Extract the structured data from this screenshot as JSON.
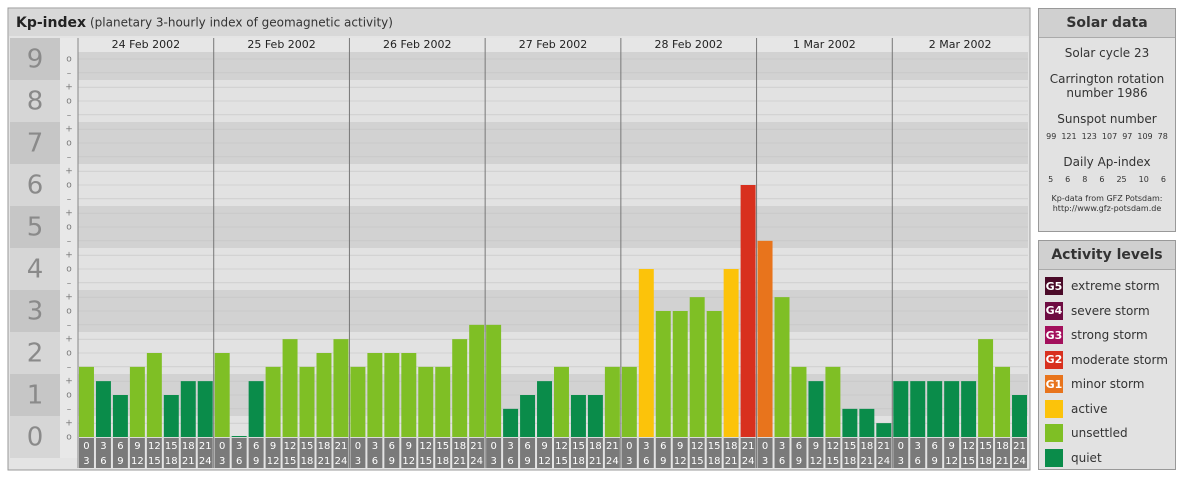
{
  "chart_data": {
    "type": "bar",
    "title": "Kp-index",
    "subtitle": "(planetary 3-hourly index of geomagnetic activity)",
    "ylim": [
      -0.5,
      9.5
    ],
    "yticks": [
      0,
      1,
      2,
      3,
      4,
      5,
      6,
      7,
      8,
      9
    ],
    "minor_ticks": [
      {
        "value": 9,
        "label": "o"
      },
      {
        "value": 8.67,
        "label": "–"
      },
      {
        "value": 8.33,
        "label": "+"
      },
      {
        "value": 8,
        "label": "o"
      },
      {
        "value": 7.67,
        "label": "–"
      },
      {
        "value": 7.33,
        "label": "+"
      },
      {
        "value": 7,
        "label": "o"
      },
      {
        "value": 6.67,
        "label": "–"
      },
      {
        "value": 6.33,
        "label": "+"
      },
      {
        "value": 6,
        "label": "o"
      },
      {
        "value": 5.67,
        "label": "–"
      },
      {
        "value": 5.33,
        "label": "+"
      },
      {
        "value": 5,
        "label": "o"
      },
      {
        "value": 4.67,
        "label": "–"
      },
      {
        "value": 4.33,
        "label": "+"
      },
      {
        "value": 4,
        "label": "o"
      },
      {
        "value": 3.67,
        "label": "–"
      },
      {
        "value": 3.33,
        "label": "+"
      },
      {
        "value": 3,
        "label": "o"
      },
      {
        "value": 2.67,
        "label": "–"
      },
      {
        "value": 2.33,
        "label": "+"
      },
      {
        "value": 2,
        "label": "o"
      },
      {
        "value": 1.67,
        "label": "–"
      },
      {
        "value": 1.33,
        "label": "+"
      },
      {
        "value": 1,
        "label": "o"
      },
      {
        "value": 0.67,
        "label": "–"
      },
      {
        "value": 0.33,
        "label": "+"
      },
      {
        "value": 0,
        "label": "o"
      }
    ],
    "hours": [
      "0",
      "3",
      "6",
      "9",
      "12",
      "15",
      "18",
      "21",
      "24"
    ],
    "days": [
      {
        "name": "24 Feb 2002",
        "values": [
          1.67,
          1.33,
          1,
          1.67,
          2,
          1,
          1.33,
          1.33
        ],
        "colors": [
          "#7fbf25",
          "#0a8c4a",
          "#0a8c4a",
          "#7fbf25",
          "#7fbf25",
          "#0a8c4a",
          "#0a8c4a",
          "#0a8c4a"
        ]
      },
      {
        "name": "25 Feb 2002",
        "values": [
          2,
          0,
          1.33,
          1.67,
          2.33,
          1.67,
          2,
          2.33
        ],
        "colors": [
          "#7fbf25",
          "#0a8c4a",
          "#0a8c4a",
          "#7fbf25",
          "#7fbf25",
          "#7fbf25",
          "#7fbf25",
          "#7fbf25"
        ]
      },
      {
        "name": "26 Feb 2002",
        "values": [
          1.67,
          2,
          2,
          2,
          1.67,
          1.67,
          2.33,
          2.67
        ],
        "colors": [
          "#7fbf25",
          "#7fbf25",
          "#7fbf25",
          "#7fbf25",
          "#7fbf25",
          "#7fbf25",
          "#7fbf25",
          "#7fbf25"
        ]
      },
      {
        "name": "27 Feb 2002",
        "values": [
          2.67,
          0.67,
          1,
          1.33,
          1.67,
          1,
          1,
          1.67
        ],
        "colors": [
          "#7fbf25",
          "#0a8c4a",
          "#0a8c4a",
          "#0a8c4a",
          "#7fbf25",
          "#0a8c4a",
          "#0a8c4a",
          "#7fbf25"
        ]
      },
      {
        "name": "28 Feb 2002",
        "values": [
          1.67,
          4,
          3,
          3,
          3.33,
          3,
          4,
          6
        ],
        "colors": [
          "#7fbf25",
          "#fcc30a",
          "#7fbf25",
          "#7fbf25",
          "#7fbf25",
          "#7fbf25",
          "#fcc30a",
          "#d8301e"
        ]
      },
      {
        "name": "1 Mar 2002",
        "values": [
          4.67,
          3.33,
          1.67,
          1.33,
          1.67,
          0.67,
          0.67,
          0.33
        ],
        "colors": [
          "#e8741c",
          "#7fbf25",
          "#7fbf25",
          "#0a8c4a",
          "#7fbf25",
          "#0a8c4a",
          "#0a8c4a",
          "#0a8c4a"
        ]
      },
      {
        "name": "2 Mar 2002",
        "values": [
          1.33,
          1.33,
          1.33,
          1.33,
          1.33,
          2.33,
          1.67,
          1
        ],
        "colors": [
          "#0a8c4a",
          "#0a8c4a",
          "#0a8c4a",
          "#0a8c4a",
          "#0a8c4a",
          "#7fbf25",
          "#7fbf25",
          "#0a8c4a"
        ]
      }
    ]
  },
  "solar_data": {
    "title": "Solar data",
    "cycle": "Solar cycle 23",
    "carrington": "Carrington rotation number 1986",
    "sunspot_title": "Sunspot number",
    "sunspot": [
      99,
      121,
      123,
      107,
      97,
      109,
      78
    ],
    "ap_title": "Daily Ap-index",
    "ap": [
      5,
      6,
      8,
      6,
      25,
      10,
      6
    ],
    "source": "Kp-data from GFZ Potsdam:",
    "url": "http://www.gfz-potsdam.de"
  },
  "activity_levels": {
    "title": "Activity levels",
    "levels": [
      {
        "badge": "G5",
        "label": "extreme storm",
        "color": "#4a0a28"
      },
      {
        "badge": "G4",
        "label": "severe storm",
        "color": "#6e0c42"
      },
      {
        "badge": "G3",
        "label": "strong storm",
        "color": "#a3105c"
      },
      {
        "badge": "G2",
        "label": "moderate storm",
        "color": "#d8301e"
      },
      {
        "badge": "G1",
        "label": "minor storm",
        "color": "#e8741c"
      },
      {
        "label": "active",
        "color": "#fcc30a"
      },
      {
        "label": "unsettled",
        "color": "#7fbf25"
      },
      {
        "label": "quiet",
        "color": "#0a8c4a"
      }
    ]
  }
}
